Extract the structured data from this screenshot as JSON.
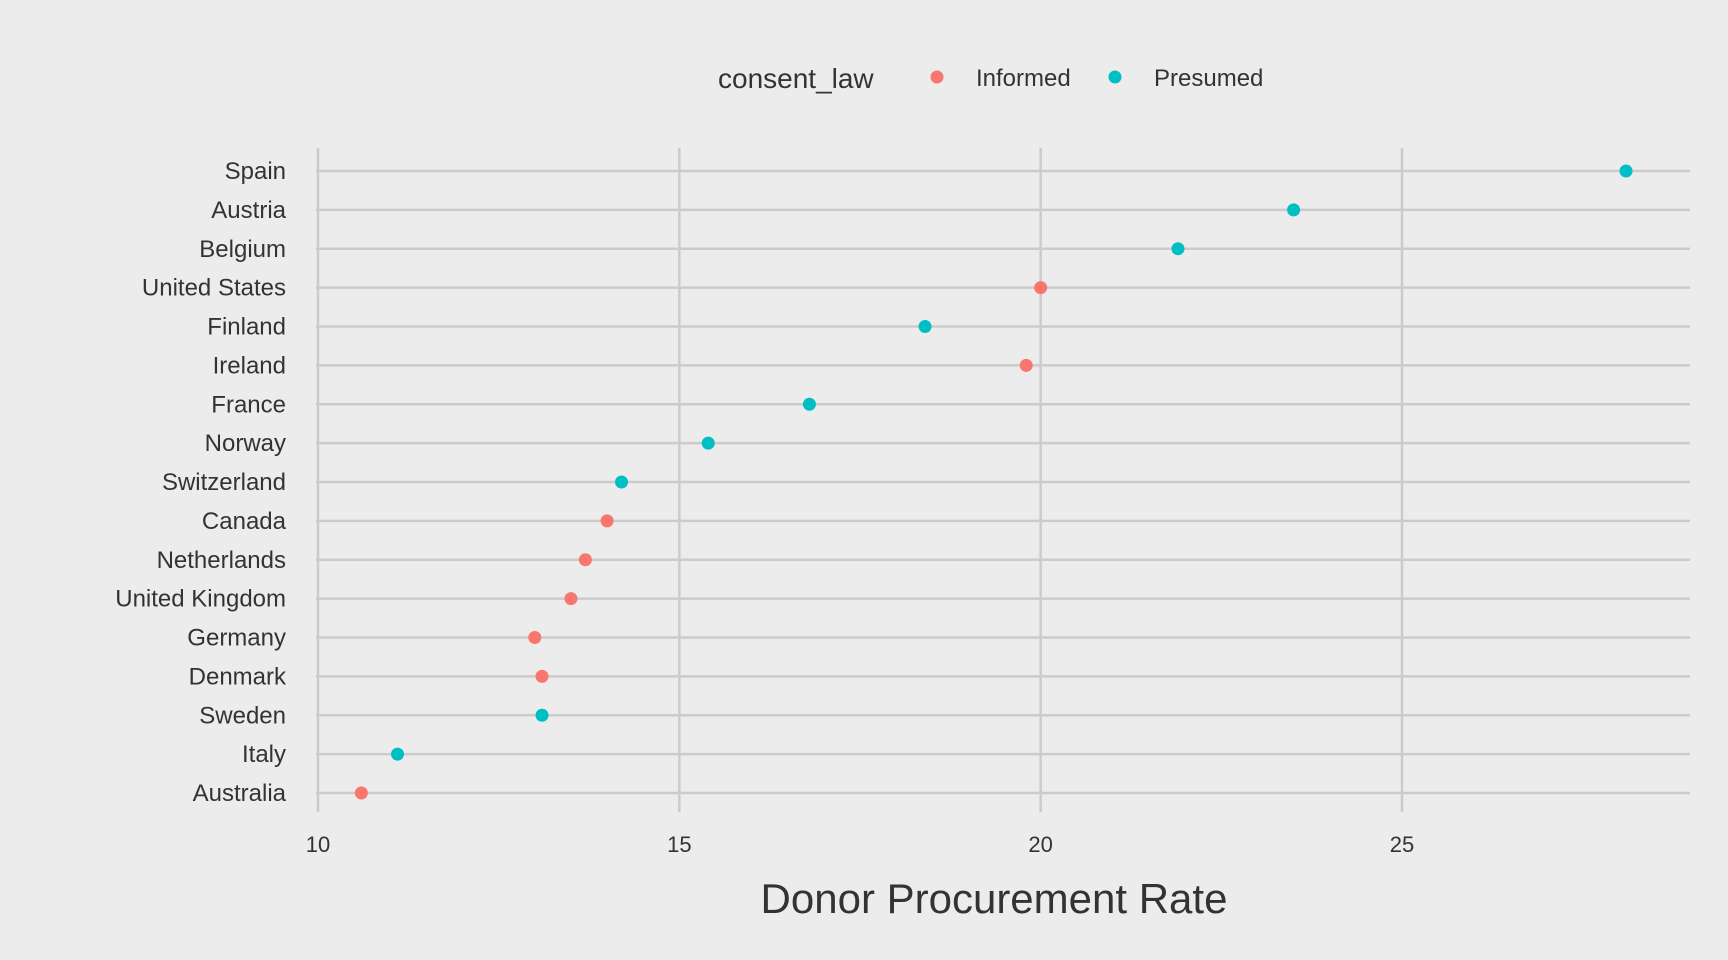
{
  "chart_data": {
    "type": "scatter",
    "xlabel": "Donor Procurement Rate",
    "ylabel": "",
    "xlim": [
      9.98,
      29.0
    ],
    "x_ticks": [
      10,
      15,
      20,
      25
    ],
    "grid": true,
    "legend": {
      "title": "consent_law",
      "placement": "top",
      "entries": [
        {
          "name": "Informed",
          "color": "#f8766d"
        },
        {
          "name": "Presumed",
          "color": "#00bfc4"
        }
      ]
    },
    "categories": [
      "Spain",
      "Austria",
      "Belgium",
      "United States",
      "Finland",
      "Ireland",
      "France",
      "Norway",
      "Switzerland",
      "Canada",
      "Netherlands",
      "United Kingdom",
      "Germany",
      "Denmark",
      "Sweden",
      "Italy",
      "Australia"
    ],
    "points": [
      {
        "country": "Spain",
        "x": 28.1,
        "consent_law": "Presumed"
      },
      {
        "country": "Austria",
        "x": 23.5,
        "consent_law": "Presumed"
      },
      {
        "country": "Belgium",
        "x": 21.9,
        "consent_law": "Presumed"
      },
      {
        "country": "United States",
        "x": 20.0,
        "consent_law": "Informed"
      },
      {
        "country": "Finland",
        "x": 18.4,
        "consent_law": "Presumed"
      },
      {
        "country": "Ireland",
        "x": 19.8,
        "consent_law": "Informed"
      },
      {
        "country": "France",
        "x": 16.8,
        "consent_law": "Presumed"
      },
      {
        "country": "Norway",
        "x": 15.4,
        "consent_law": "Presumed"
      },
      {
        "country": "Switzerland",
        "x": 14.2,
        "consent_law": "Presumed"
      },
      {
        "country": "Canada",
        "x": 14.0,
        "consent_law": "Informed"
      },
      {
        "country": "Netherlands",
        "x": 13.7,
        "consent_law": "Informed"
      },
      {
        "country": "United Kingdom",
        "x": 13.5,
        "consent_law": "Informed"
      },
      {
        "country": "Germany",
        "x": 13.0,
        "consent_law": "Informed"
      },
      {
        "country": "Denmark",
        "x": 13.1,
        "consent_law": "Informed"
      },
      {
        "country": "Sweden",
        "x": 13.1,
        "consent_law": "Presumed"
      },
      {
        "country": "Italy",
        "x": 11.1,
        "consent_law": "Presumed"
      },
      {
        "country": "Australia",
        "x": 10.6,
        "consent_law": "Informed"
      }
    ]
  }
}
